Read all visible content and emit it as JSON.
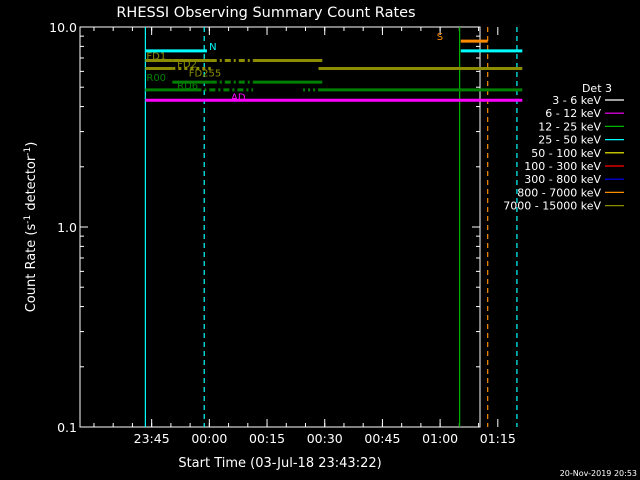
{
  "chart_data": {
    "type": "line",
    "title": "RHESSI Observing Summary Count Rates",
    "xlabel": "Start Time (03-Jul-18 23:43:22)",
    "ylabel_main": "Count Rate (s",
    "ylabel_sup1": "-1",
    "ylabel_mid": " detector",
    "ylabel_sup2": "-1",
    "ylabel_end": ")",
    "yscale": "log",
    "ylim": [
      0.1,
      10.0
    ],
    "xlim_minutes": [
      -17,
      87
    ],
    "yticks": [
      {
        "value": 0.1,
        "label": "0.1"
      },
      {
        "value": 1.0,
        "label": "1.0"
      },
      {
        "value": 10.0,
        "label": "10.0"
      }
    ],
    "xticks": [
      {
        "min": 2,
        "label": "23:45"
      },
      {
        "min": 17,
        "label": "00:00"
      },
      {
        "min": 32,
        "label": "00:15"
      },
      {
        "min": 47,
        "label": "00:30"
      },
      {
        "min": 62,
        "label": "00:45"
      },
      {
        "min": 77,
        "label": "01:00"
      },
      {
        "min": 92,
        "label": "01:15"
      }
    ],
    "legend_title": "Det 3",
    "legend": [
      {
        "label": "3 - 6 keV",
        "color": "#ffffff"
      },
      {
        "label": "6 - 12 keV",
        "color": "#ff00ff"
      },
      {
        "label": "12 - 25 keV",
        "color": "#00b400"
      },
      {
        "label": "25 - 50 keV",
        "color": "#00ffff"
      },
      {
        "label": "50 - 100 keV",
        "color": "#ffff00"
      },
      {
        "label": "100 - 300 keV",
        "color": "#ff0000"
      },
      {
        "label": "300 - 800 keV",
        "color": "#0000ff"
      },
      {
        "label": "800 - 7000 keV",
        "color": "#ff8c00"
      },
      {
        "label": "7000 - 15000 keV",
        "color": "#8c8c00"
      }
    ],
    "segments": [
      {
        "color": "#00ffff",
        "y": 7.6,
        "x": [
          0,
          16
        ],
        "dash": ""
      },
      {
        "color": "#00ffff",
        "y": 7.6,
        "x": [
          82,
          98
        ],
        "dash": ""
      },
      {
        "color": "#8c8c00",
        "y": 6.8,
        "x": [
          0,
          7
        ],
        "dash": ""
      },
      {
        "color": "#8c8c00",
        "y": 6.2,
        "x": [
          0,
          7
        ],
        "dash": ""
      },
      {
        "color": "#8c8c00",
        "y": 6.2,
        "x": [
          7,
          17
        ],
        "dash": "3 3"
      },
      {
        "color": "#8c8c00",
        "y": 6.8,
        "x": [
          7,
          17
        ],
        "dash": ""
      },
      {
        "color": "#8c8c00",
        "y": 6.8,
        "x": [
          17,
          28
        ],
        "dash": "6 3 2 3"
      },
      {
        "color": "#8c8c00",
        "y": 6.8,
        "x": [
          28,
          46
        ],
        "dash": ""
      },
      {
        "color": "#8c8c00",
        "y": 6.2,
        "x": [
          45,
          98
        ],
        "dash": ""
      },
      {
        "color": "#008000",
        "y": 5.3,
        "x": [
          7,
          17
        ],
        "dash": ""
      },
      {
        "color": "#008000",
        "y": 5.3,
        "x": [
          17,
          28
        ],
        "dash": "6 3 2 3"
      },
      {
        "color": "#008000",
        "y": 5.3,
        "x": [
          28,
          46
        ],
        "dash": ""
      },
      {
        "color": "#008000",
        "y": 4.85,
        "x": [
          0,
          13
        ],
        "dash": ""
      },
      {
        "color": "#008000",
        "y": 4.85,
        "x": [
          13,
          28
        ],
        "dash": "6 3 2 3"
      },
      {
        "color": "#008000",
        "y": 4.85,
        "x": [
          41,
          45
        ],
        "dash": "2 3"
      },
      {
        "color": "#008000",
        "y": 4.85,
        "x": [
          45,
          98
        ],
        "dash": ""
      },
      {
        "color": "#ff00ff",
        "y": 4.3,
        "x": [
          0,
          98
        ],
        "dash": ""
      },
      {
        "color": "#ff8c00",
        "y": 8.5,
        "x": [
          82,
          89
        ],
        "dash": ""
      }
    ],
    "vlines": [
      {
        "x": 0,
        "color": "#00ffff",
        "dash": ""
      },
      {
        "x": 15.3,
        "color": "#00ffff",
        "dash": "5 4"
      },
      {
        "x": 81.7,
        "color": "#00b400",
        "dash": ""
      },
      {
        "x": 89,
        "color": "#ff8c00",
        "dash": "5 4"
      },
      {
        "x": 96.6,
        "color": "#00ffff",
        "dash": "5 4"
      }
    ],
    "annotations": [
      {
        "text": "N",
        "x": 16.3,
        "y": 7.6,
        "color": "#00ffff"
      },
      {
        "text": "FD1",
        "x": 0,
        "y": 6.8,
        "color": "#8c8c00"
      },
      {
        "text": "FD2",
        "x": 8,
        "y": 6.2,
        "color": "#8c8c00"
      },
      {
        "text": "FD255",
        "x": 11,
        "y": 5.6,
        "color": "#8c8c00"
      },
      {
        "text": "R00",
        "x": 0,
        "y": 5.3,
        "color": "#008000"
      },
      {
        "text": "RD6",
        "x": 8,
        "y": 4.85,
        "color": "#008000"
      },
      {
        "text": "AD",
        "x": 22,
        "y": 4.25,
        "color": "#ff00ff"
      },
      {
        "text": "S",
        "x": 75.5,
        "y": 8.5,
        "color": "#ff8c00"
      }
    ]
  },
  "footer_date": "20-Nov-2019 20:53"
}
